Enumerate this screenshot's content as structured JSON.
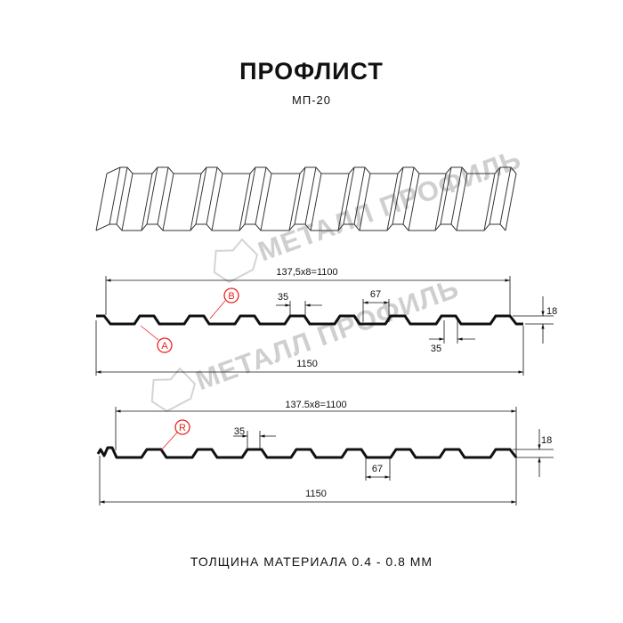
{
  "header": {
    "title": "ПРОФЛИСТ",
    "model": "МП-20"
  },
  "watermark": {
    "text": "МЕТАЛЛ ПРОФИЛЬ"
  },
  "profile_top": {
    "pitch_label": "137,5x8=1100",
    "width_label": "1150",
    "crest_width_label": "35",
    "trough_width_label": "35",
    "rib_base_label": "67",
    "height_label": "18",
    "marker_a": "A",
    "marker_b": "B"
  },
  "profile_bottom": {
    "pitch_label": "137.5x8=1100",
    "width_label": "1150",
    "crest_width_label": "35",
    "rib_base_label": "67",
    "height_label": "18",
    "marker_r": "R"
  },
  "footer": {
    "thickness": "ТОЛЩИНА МАТЕРИАЛА 0.4 - 0.8 ММ"
  },
  "colors": {
    "line": "#111111",
    "marker": "#e8231e",
    "watermark": "#d4d4d4"
  }
}
